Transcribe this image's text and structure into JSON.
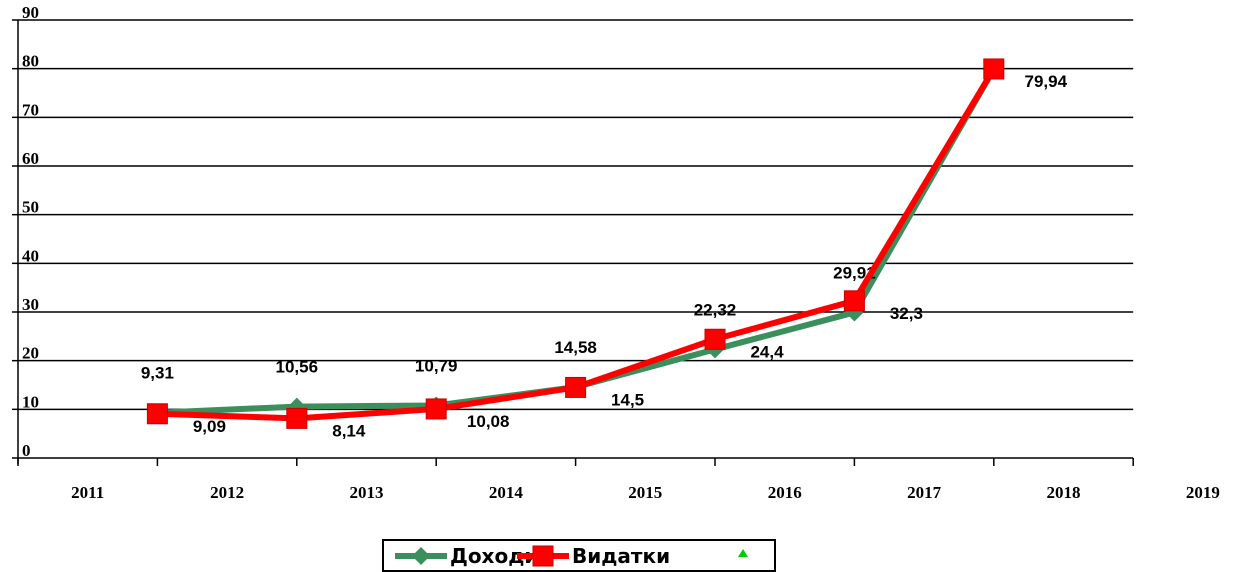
{
  "chart_data": {
    "type": "line",
    "categories": [
      "2011",
      "2012",
      "2013",
      "2014",
      "2015",
      "2016",
      "2017",
      "2018",
      "2019"
    ],
    "series": [
      {
        "name": "Доходи",
        "color": "#3a8f5c",
        "marker": "diamond",
        "values": [
          null,
          9.31,
          10.56,
          10.79,
          14.58,
          22.32,
          29.91,
          79.94,
          null
        ],
        "value_labels": [
          null,
          "9,31",
          "10,56",
          "10,79",
          "14,58",
          "22,32",
          "29,91",
          null,
          null
        ]
      },
      {
        "name": "Видатки",
        "color": "#ff0000",
        "marker": "square",
        "values": [
          null,
          9.09,
          8.14,
          10.08,
          14.5,
          24.4,
          32.3,
          79.94,
          null
        ],
        "value_labels": [
          null,
          "9,09",
          "8,14",
          "10,08",
          "14,5",
          "24,4",
          "32,3",
          "79,94",
          null
        ]
      }
    ],
    "ylim": [
      0,
      90
    ],
    "yticks": [
      0,
      10,
      20,
      30,
      40,
      50,
      60,
      70,
      80,
      90
    ],
    "grid": true
  }
}
